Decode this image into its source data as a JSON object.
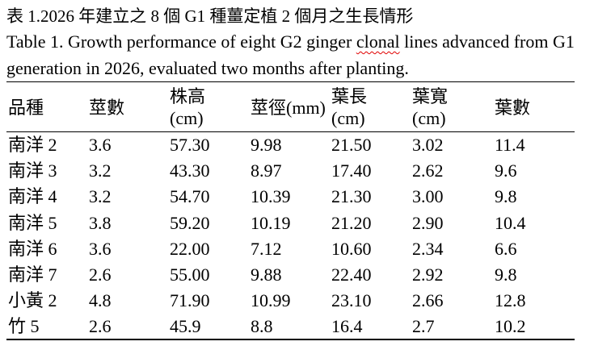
{
  "caption": {
    "zh": "表 1.2026 年建立之 8 個 G1 種薑定植 2 個月之生長情形",
    "en_line1": [
      "Table 1. Growth performance of eight G2 ginger ",
      "clonal",
      " lines advanced from G1"
    ],
    "en_line2": "generation in 2026, evaluated two months after planting."
  },
  "table": {
    "headers": [
      {
        "line1": "品種"
      },
      {
        "line1": "莖數"
      },
      {
        "line1": "株高",
        "line2": "(cm)"
      },
      {
        "line1": "莖徑(mm)"
      },
      {
        "line1": "葉長",
        "line2": "(cm)"
      },
      {
        "line1": "葉寬",
        "line2": "(cm)"
      },
      {
        "line1": "葉數"
      }
    ],
    "rows": [
      [
        "南洋 2",
        "3.6",
        "57.30",
        "9.98",
        "21.50",
        "3.02",
        "11.4"
      ],
      [
        "南洋 3",
        "3.2",
        "43.30",
        "8.97",
        "17.40",
        "2.62",
        "9.6"
      ],
      [
        "南洋 4",
        "3.2",
        "54.70",
        "10.39",
        "21.30",
        "3.00",
        "9.8"
      ],
      [
        "南洋 5",
        "3.8",
        "59.20",
        "10.19",
        "21.20",
        "2.90",
        "10.4"
      ],
      [
        "南洋 6",
        "3.6",
        "22.00",
        "7.12",
        "10.60",
        "2.34",
        "6.6"
      ],
      [
        "南洋 7",
        "2.6",
        "55.00",
        "9.88",
        "22.40",
        "2.92",
        "9.8"
      ],
      [
        "小黃 2",
        "4.8",
        "71.90",
        "10.99",
        "23.10",
        "2.66",
        "12.8"
      ],
      [
        "竹 5",
        "2.6",
        "45.9",
        "8.8",
        "16.4",
        "2.7",
        "10.2"
      ]
    ]
  },
  "colors": {
    "text": "#000000",
    "rule": "#000000",
    "spellcheck_underline": "#e00000"
  }
}
